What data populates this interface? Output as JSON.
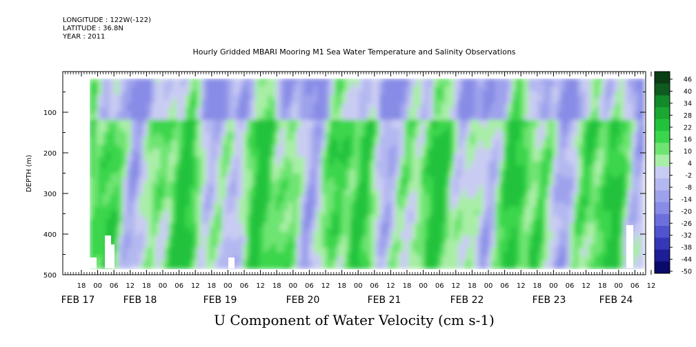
{
  "header": {
    "longitude": "LONGITUDE : 122W(-122)",
    "latitude": "LATITUDE : 36.8N",
    "year": "YEAR : 2011"
  },
  "chart_data": {
    "type": "heatmap",
    "title": "Hourly Gridded MBARI Mooring M1 Sea Water Temperature and Salinity Observations",
    "xlabel": "U Component of Water Velocity (cm s-1)",
    "ylabel": "DEPTH (m)",
    "ylim": [
      500,
      0
    ],
    "y_ticks": [
      100,
      200,
      300,
      400,
      500
    ],
    "hour_tick_labels": [
      "18",
      "00",
      "06",
      "12",
      "18",
      "00",
      "06",
      "12",
      "18",
      "00",
      "06",
      "12",
      "18",
      "00",
      "06",
      "12",
      "18",
      "00",
      "06",
      "12",
      "18",
      "00",
      "06",
      "12",
      "18",
      "00",
      "06",
      "12",
      "18",
      "00",
      "06",
      "12",
      "18",
      "00",
      "06",
      "12"
    ],
    "day_labels": [
      "FEB 17",
      "FEB 18",
      "FEB 19",
      "FEB 20",
      "FEB 21",
      "FEB 22",
      "FEB 23",
      "FEB 24"
    ],
    "colorbar": {
      "min": -50,
      "max": 50,
      "labels": [
        "46",
        "40",
        "34",
        "28",
        "22",
        "16",
        "10",
        "4",
        "-2",
        "-8",
        "-14",
        "-20",
        "-26",
        "-32",
        "-38",
        "-44",
        "-50"
      ],
      "colors": [
        "#0a3d14",
        "#0f5a1e",
        "#138a2a",
        "#1aa832",
        "#22c23c",
        "#3ad64c",
        "#6ee472",
        "#a8eea6",
        "#c9ccf2",
        "#b4b8f0",
        "#9ea2ec",
        "#888ce6",
        "#6c70dc",
        "#5054ce",
        "#3438b8",
        "#1c1e96",
        "#0a0a6a"
      ]
    }
  }
}
